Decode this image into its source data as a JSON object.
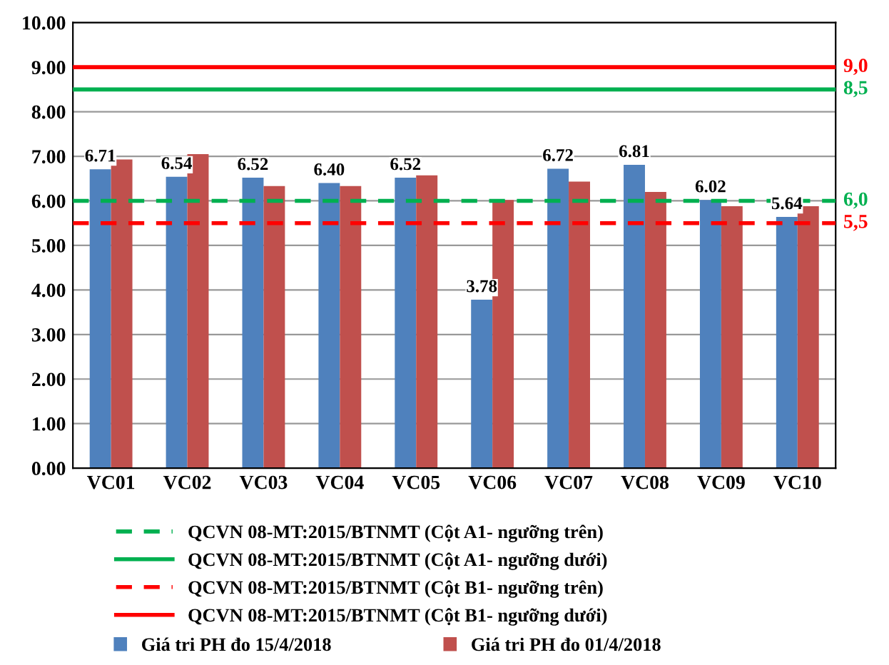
{
  "chart_data": {
    "type": "bar",
    "categories": [
      "VC01",
      "VC02",
      "VC03",
      "VC04",
      "VC05",
      "VC06",
      "VC07",
      "VC08",
      "VC09",
      "VC10"
    ],
    "series": [
      {
        "name": "Giá tri PH đo 15/4/2018",
        "color": "#4f81bd",
        "values": [
          6.71,
          6.54,
          6.52,
          6.4,
          6.52,
          3.78,
          6.72,
          6.81,
          6.02,
          5.64
        ],
        "value_labels": [
          "6.71",
          "6.54",
          "6.52",
          "6.40",
          "6.52",
          "3.78",
          "6.72",
          "6.81",
          "6.02",
          "5.64"
        ]
      },
      {
        "name": "Giá tri PH đo 01/4/2018",
        "color": "#c0504d",
        "values": [
          6.93,
          7.05,
          6.33,
          6.33,
          6.57,
          6.02,
          6.43,
          6.2,
          5.88,
          5.88
        ]
      }
    ],
    "ylim": [
      0,
      10
    ],
    "yticks": [
      {
        "value": 0,
        "label": "0.00"
      },
      {
        "value": 1,
        "label": "1.00"
      },
      {
        "value": 2,
        "label": "2.00"
      },
      {
        "value": 3,
        "label": "3.00"
      },
      {
        "value": 4,
        "label": "4.00"
      },
      {
        "value": 5,
        "label": "5.00"
      },
      {
        "value": 6,
        "label": "6.00"
      },
      {
        "value": 7,
        "label": "7.00"
      },
      {
        "value": 8,
        "label": "8.00"
      },
      {
        "value": 9,
        "label": "9.00"
      },
      {
        "value": 10,
        "label": "10.00"
      }
    ],
    "ref_lines": [
      {
        "axis": "y",
        "value": 6.0,
        "label": "6,0",
        "color": "#00b050",
        "line_style": "dashed"
      },
      {
        "axis": "y",
        "value": 8.5,
        "label": "8,5",
        "color": "#00b050",
        "line_style": "solid"
      },
      {
        "axis": "y",
        "value": 5.5,
        "label": "5,5",
        "color": "#ff0000",
        "line_style": "dashed"
      },
      {
        "axis": "y",
        "value": 9.0,
        "label": "9,0",
        "color": "#ff0000",
        "line_style": "solid"
      }
    ],
    "annotations": [
      "QCVN 08-MT:2015/BTNMT (Cột A1- ngưỡng trên)",
      "QCVN 08-MT:2015/BTNMT (Cột A1- ngưỡng dưới)",
      "QCVN 08-MT:2015/BTNMT (Cột B1- ngưỡng trên)",
      "QCVN 08-MT:2015/BTNMT (Cột B1- ngưỡng dưới)"
    ],
    "grid": "y",
    "legend": "bottom"
  }
}
